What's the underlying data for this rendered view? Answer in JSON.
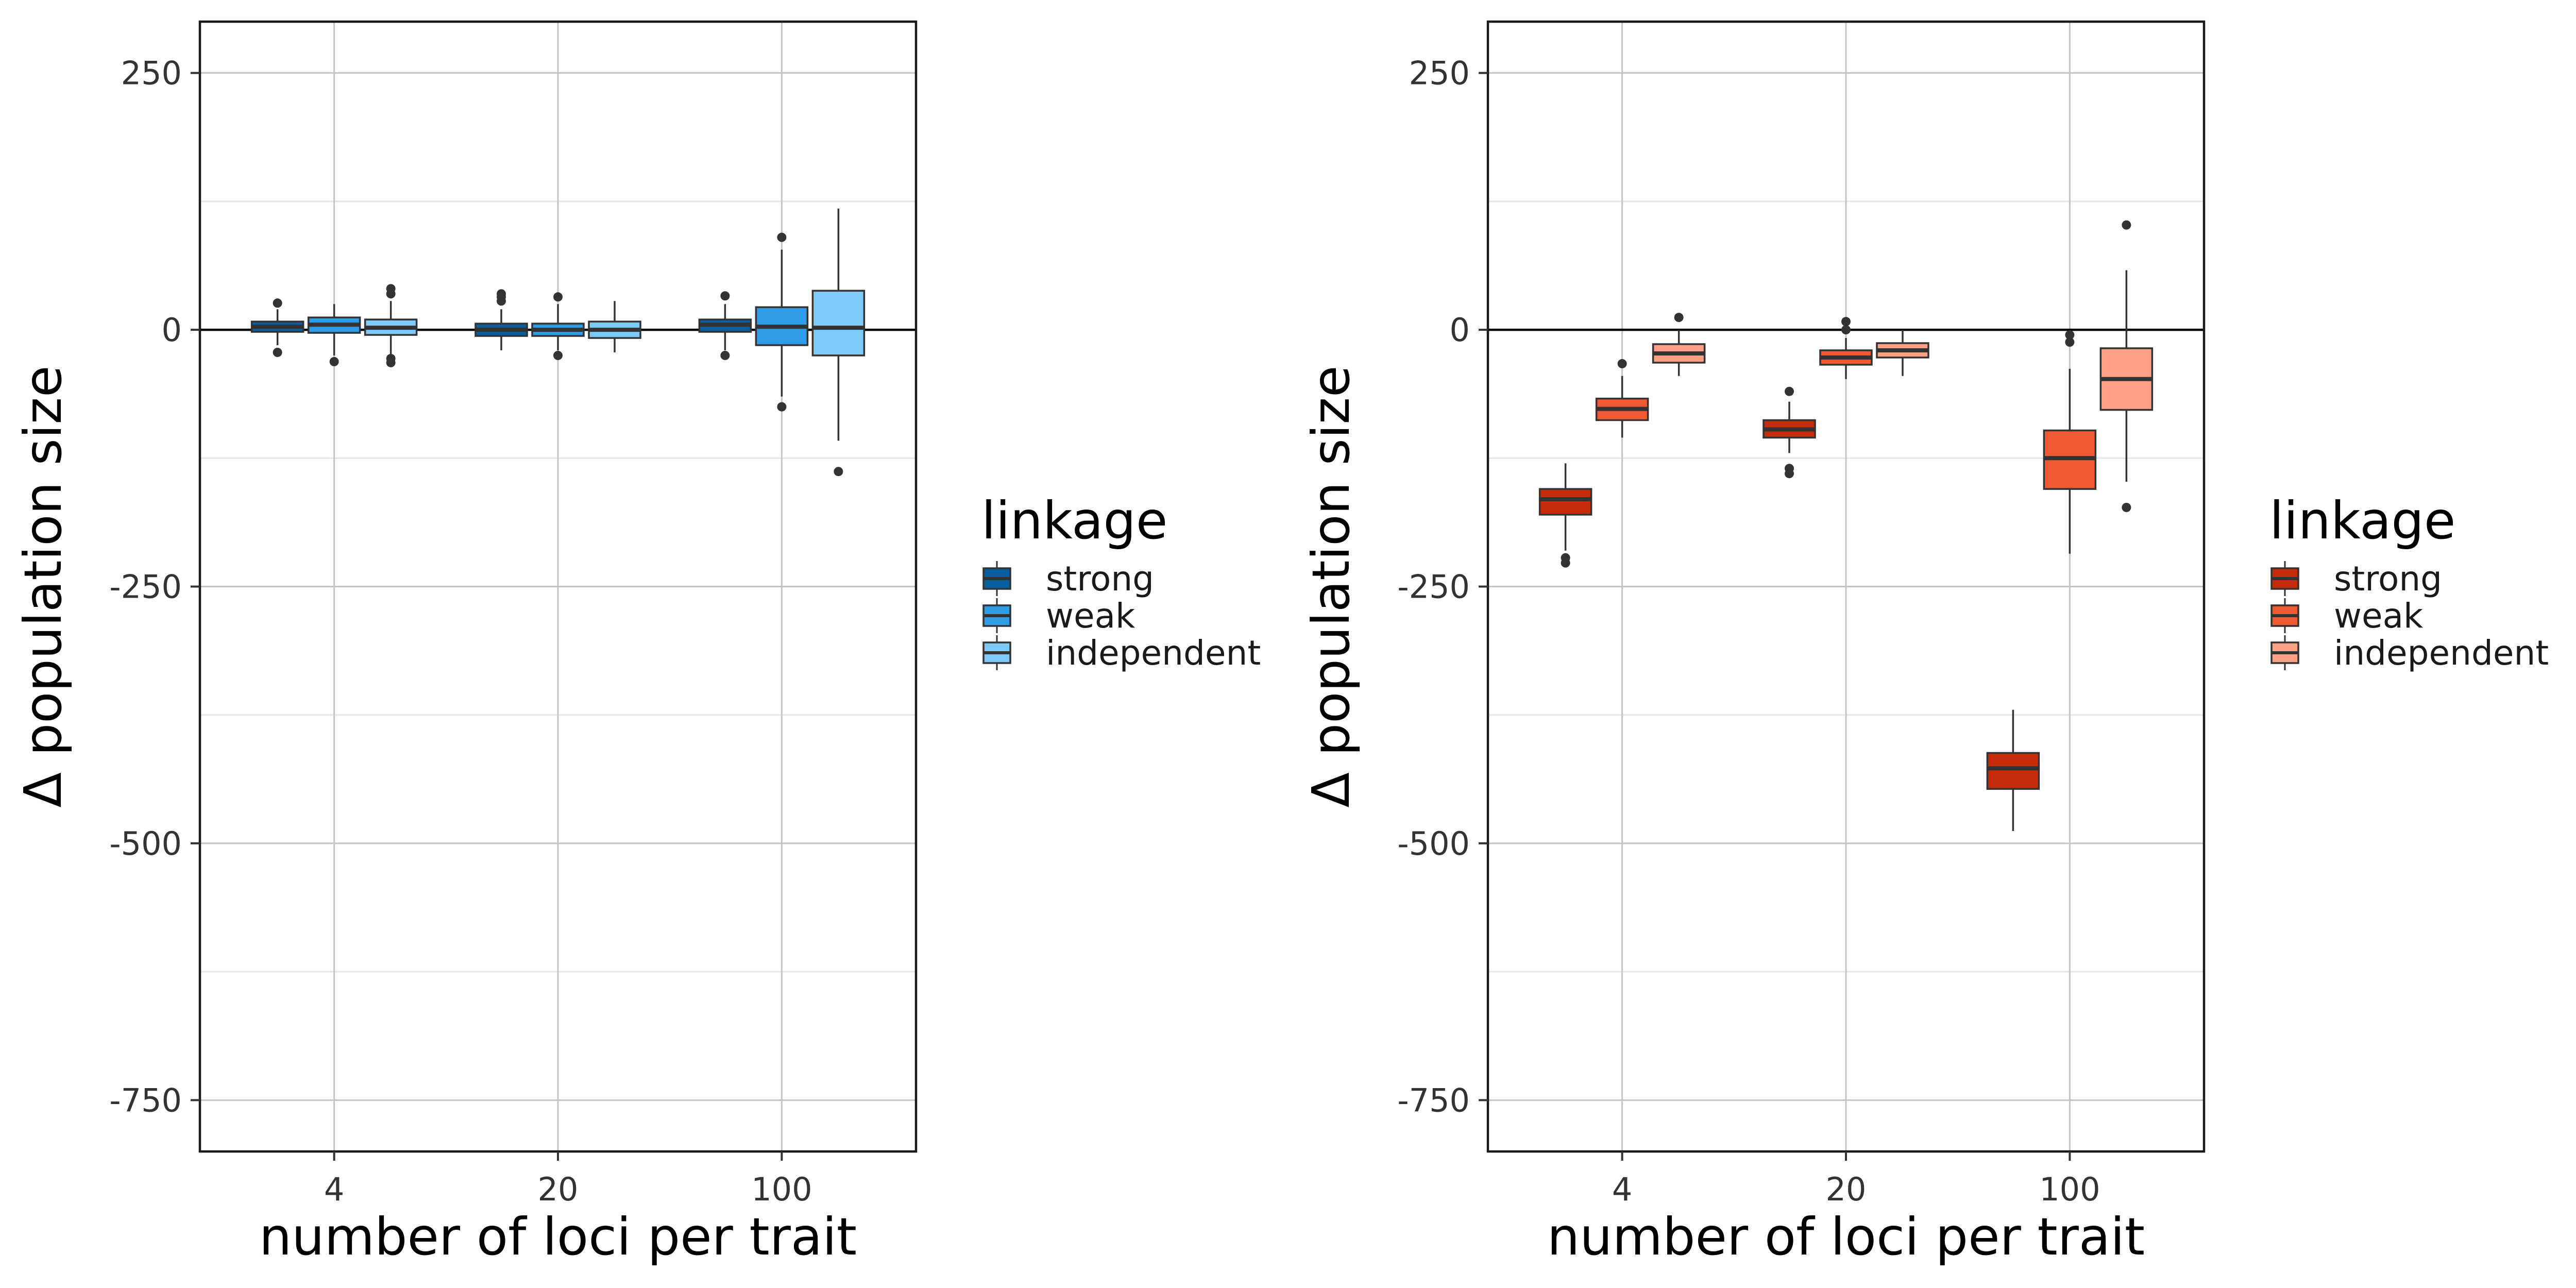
{
  "chart_data": [
    {
      "type": "boxplot",
      "xlabel": "number of loci per trait",
      "ylabel": "Δ population size",
      "categories": [
        "4",
        "20",
        "100"
      ],
      "y_ticks": [
        250,
        0,
        -250,
        -500,
        -750
      ],
      "y_tick_labels": [
        "250",
        "0",
        "-250",
        "-500",
        "-750"
      ],
      "ylim": [
        -800,
        300
      ],
      "reference_line": 0,
      "grid": true,
      "legend": {
        "title": "linkage",
        "position": "right",
        "entries": [
          "strong",
          "weak",
          "independent"
        ]
      },
      "series": [
        {
          "name": "strong",
          "color": "#0A5F9E",
          "boxes": [
            {
              "category": "4",
              "whisker_low": -15,
              "q1": -2,
              "median": 3,
              "q3": 8,
              "whisker_high": 20,
              "outliers": [
                26,
                -22
              ]
            },
            {
              "category": "20",
              "whisker_low": -20,
              "q1": -6,
              "median": 0,
              "q3": 6,
              "whisker_high": 20,
              "outliers": [
                28,
                32,
                35
              ]
            },
            {
              "category": "100",
              "whisker_low": -20,
              "q1": -2,
              "median": 5,
              "q3": 10,
              "whisker_high": 25,
              "outliers": [
                33,
                -25
              ]
            }
          ]
        },
        {
          "name": "weak",
          "color": "#2F9CE8",
          "boxes": [
            {
              "category": "4",
              "whisker_low": -25,
              "q1": -3,
              "median": 5,
              "q3": 12,
              "whisker_high": 25,
              "outliers": [
                -31
              ]
            },
            {
              "category": "20",
              "whisker_low": -20,
              "q1": -6,
              "median": 0,
              "q3": 6,
              "whisker_high": 25,
              "outliers": [
                32,
                -25
              ]
            },
            {
              "category": "100",
              "whisker_low": -65,
              "q1": -15,
              "median": 3,
              "q3": 22,
              "whisker_high": 78,
              "outliers": [
                90,
                -75
              ]
            }
          ]
        },
        {
          "name": "independent",
          "color": "#7DCAF9",
          "boxes": [
            {
              "category": "4",
              "whisker_low": -25,
              "q1": -5,
              "median": 2,
              "q3": 10,
              "whisker_high": 28,
              "outliers": [
                35,
                40,
                -28,
                -32
              ]
            },
            {
              "category": "20",
              "whisker_low": -22,
              "q1": -8,
              "median": 0,
              "q3": 8,
              "whisker_high": 28,
              "outliers": []
            },
            {
              "category": "100",
              "whisker_low": -108,
              "q1": -25,
              "median": 2,
              "q3": 38,
              "whisker_high": 118,
              "outliers": [
                -138
              ]
            }
          ]
        }
      ]
    },
    {
      "type": "boxplot",
      "xlabel": "number of loci per trait",
      "ylabel": "Δ population size",
      "categories": [
        "4",
        "20",
        "100"
      ],
      "y_ticks": [
        250,
        0,
        -250,
        -500,
        -750
      ],
      "y_tick_labels": [
        "250",
        "0",
        "-250",
        "-500",
        "-750"
      ],
      "ylim": [
        -800,
        300
      ],
      "reference_line": 0,
      "grid": true,
      "legend": {
        "title": "linkage",
        "position": "right",
        "entries": [
          "strong",
          "weak",
          "independent"
        ]
      },
      "series": [
        {
          "name": "strong",
          "color": "#C62C0A",
          "boxes": [
            {
              "category": "4",
              "whisker_low": -215,
              "q1": -180,
              "median": -165,
              "q3": -155,
              "whisker_high": -130,
              "outliers": [
                -222,
                -227
              ]
            },
            {
              "category": "20",
              "whisker_low": -120,
              "q1": -105,
              "median": -97,
              "q3": -88,
              "whisker_high": -70,
              "outliers": [
                -60,
                -135,
                -140
              ]
            },
            {
              "category": "100",
              "whisker_low": -488,
              "q1": -447,
              "median": -427,
              "q3": -412,
              "whisker_high": -370,
              "outliers": []
            }
          ]
        },
        {
          "name": "weak",
          "color": "#F05A33",
          "boxes": [
            {
              "category": "4",
              "whisker_low": -105,
              "q1": -88,
              "median": -77,
              "q3": -67,
              "whisker_high": -45,
              "outliers": [
                -33
              ]
            },
            {
              "category": "20",
              "whisker_low": -48,
              "q1": -34,
              "median": -27,
              "q3": -20,
              "whisker_high": -8,
              "outliers": [
                8,
                0
              ]
            },
            {
              "category": "100",
              "whisker_low": -218,
              "q1": -155,
              "median": -125,
              "q3": -98,
              "whisker_high": -38,
              "outliers": [
                -5,
                -12
              ]
            }
          ]
        },
        {
          "name": "independent",
          "color": "#FDA083",
          "boxes": [
            {
              "category": "4",
              "whisker_low": -45,
              "q1": -32,
              "median": -23,
              "q3": -14,
              "whisker_high": 0,
              "outliers": [
                12
              ]
            },
            {
              "category": "20",
              "whisker_low": -45,
              "q1": -27,
              "median": -20,
              "q3": -13,
              "whisker_high": 0,
              "outliers": []
            },
            {
              "category": "100",
              "whisker_low": -148,
              "q1": -78,
              "median": -48,
              "q3": -18,
              "whisker_high": 58,
              "outliers": [
                102,
                -173
              ]
            }
          ]
        }
      ]
    }
  ]
}
